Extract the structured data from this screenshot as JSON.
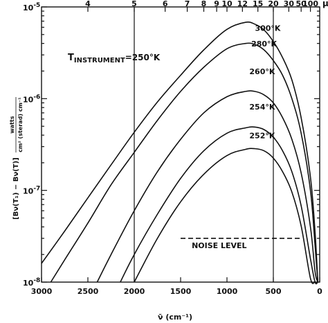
{
  "chart_data": {
    "type": "line",
    "x_axis": {
      "label": "ν̄ (cm⁻¹)",
      "range": [
        3000,
        0
      ],
      "ticks": [
        3000,
        2500,
        2000,
        1500,
        1000,
        500,
        0
      ],
      "tick_labels": [
        "3000",
        "2500",
        "2000",
        "1500",
        "1000",
        "500",
        "0"
      ]
    },
    "x2_axis": {
      "unit": "μ",
      "ticks": [
        4,
        5,
        6,
        7,
        8,
        9,
        10,
        12,
        15,
        20,
        30,
        50,
        100
      ],
      "tick_labels": [
        "4",
        "5",
        "6",
        "7",
        "8",
        "9",
        "10",
        "12",
        "15",
        "20",
        "30",
        "50",
        "100"
      ]
    },
    "y_axis": {
      "scale": "log",
      "range": [
        1e-08,
        1e-05
      ],
      "label_parts": [
        "[Bν(T₁) − Bν(T)]",
        "watts",
        "cm² (sterad) cm⁻¹"
      ],
      "ticks": [
        1e-08,
        1e-07,
        1e-06,
        1e-05
      ],
      "tick_labels": [
        {
          "base": "10",
          "exp": "-8"
        },
        {
          "base": "10",
          "exp": "-7"
        },
        {
          "base": "10",
          "exp": "-6"
        },
        {
          "base": "10",
          "exp": "-5"
        }
      ]
    },
    "annotations": {
      "instrument": {
        "main": "T",
        "sub": "INSTRUMENT",
        "rest": "=250°K"
      },
      "noise_label": "NOISE LEVEL",
      "noise_value": 3e-08,
      "noise_range": [
        1500,
        200
      ]
    },
    "vertical_lines": [
      2000,
      500
    ],
    "instrument_temperature_K": 250,
    "series": [
      {
        "name": "300°K",
        "temperature_K": 300,
        "label_at": [
          560,
          5.5e-06
        ],
        "x": [
          3000,
          2750,
          2500,
          2250,
          2000,
          1750,
          1500,
          1250,
          1000,
          800,
          700,
          600,
          500,
          400,
          300,
          200,
          100,
          50,
          20
        ],
        "values": [
          1.6e-08,
          3.6e-08,
          8.3e-08,
          1.9e-07,
          4.3e-07,
          9.2e-07,
          1.8e-06,
          3.4e-06,
          5.7e-06,
          6.8e-06,
          6.5e-06,
          5.6e-06,
          4.2e-06,
          2.8e-06,
          1.6e-06,
          6.2e-07,
          1.4e-07,
          3.5e-08,
          1e-08
        ]
      },
      {
        "name": "280°K",
        "temperature_K": 280,
        "label_at": [
          600,
          3.7e-06
        ],
        "x": [
          2900,
          2750,
          2500,
          2250,
          2000,
          1750,
          1500,
          1250,
          1000,
          800,
          700,
          600,
          500,
          400,
          300,
          200,
          100,
          50,
          20
        ],
        "values": [
          1e-08,
          1.75e-08,
          4.4e-08,
          1.15e-07,
          2.6e-07,
          5.8e-07,
          1.2e-06,
          2.2e-06,
          3.5e-06,
          4e-06,
          3.9e-06,
          3.4e-06,
          2.6e-06,
          1.8e-06,
          1e-06,
          4.2e-07,
          1e-07,
          2.5e-08,
          1e-08
        ]
      },
      {
        "name": "260°K",
        "temperature_K": 260,
        "label_at": [
          620,
          1.85e-06
        ],
        "x": [
          2400,
          2250,
          2000,
          1750,
          1500,
          1250,
          1000,
          800,
          700,
          600,
          500,
          400,
          300,
          200,
          100,
          50,
          20
        ],
        "values": [
          1e-08,
          2e-08,
          6e-08,
          1.6e-07,
          3.6e-07,
          7e-07,
          1.05e-06,
          1.2e-06,
          1.2e-06,
          1.1e-06,
          9e-07,
          6.2e-07,
          3.6e-07,
          1.55e-07,
          4e-08,
          1.3e-08,
          1e-08
        ]
      },
      {
        "name": "254°K",
        "temperature_K": 254,
        "label_at": [
          620,
          7.6e-07
        ],
        "x": [
          2150,
          2000,
          1750,
          1500,
          1250,
          1000,
          800,
          700,
          600,
          500,
          400,
          300,
          200,
          100,
          50,
          20
        ],
        "values": [
          1e-08,
          2e-08,
          5.5e-08,
          1.35e-07,
          2.7e-07,
          4.2e-07,
          4.8e-07,
          4.9e-07,
          4.6e-07,
          3.8e-07,
          2.7e-07,
          1.6e-07,
          6.8e-08,
          1.8e-08,
          1e-08,
          1e-08
        ]
      },
      {
        "name": "252°K",
        "temperature_K": 252,
        "label_at": [
          620,
          3.7e-07
        ],
        "x": [
          2000,
          1750,
          1500,
          1250,
          1000,
          800,
          700,
          600,
          500,
          400,
          300,
          200,
          100,
          50,
          20
        ],
        "values": [
          1e-08,
          3e-08,
          7.5e-08,
          1.5e-07,
          2.4e-07,
          2.8e-07,
          2.85e-07,
          2.7e-07,
          2.25e-07,
          1.6e-07,
          9.6e-08,
          4.1e-08,
          1.1e-08,
          1e-08,
          1e-08
        ]
      }
    ]
  }
}
